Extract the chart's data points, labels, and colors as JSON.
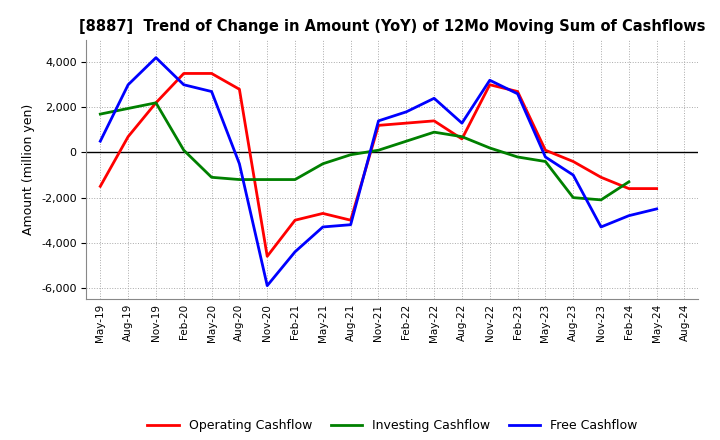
{
  "title": "[8887]  Trend of Change in Amount (YoY) of 12Mo Moving Sum of Cashflows",
  "ylabel": "Amount (million yen)",
  "x_labels": [
    "May-19",
    "Aug-19",
    "Nov-19",
    "Feb-20",
    "May-20",
    "Aug-20",
    "Nov-20",
    "Feb-21",
    "May-21",
    "Aug-21",
    "Nov-21",
    "Feb-22",
    "May-22",
    "Aug-22",
    "Nov-22",
    "Feb-23",
    "May-23",
    "Aug-23",
    "Nov-23",
    "Feb-24",
    "May-24",
    "Aug-24"
  ],
  "operating": [
    -1500,
    700,
    2200,
    3500,
    3500,
    2800,
    -4600,
    -3000,
    -2700,
    -3000,
    1200,
    1300,
    1400,
    600,
    3000,
    2700,
    100,
    -400,
    -1100,
    -1600,
    -1600,
    null
  ],
  "investing": [
    1700,
    1950,
    2200,
    100,
    -1100,
    -1200,
    -1200,
    -1200,
    -500,
    -100,
    100,
    500,
    900,
    700,
    200,
    -200,
    -400,
    -2000,
    -2100,
    -1300,
    null,
    null
  ],
  "free": [
    500,
    3000,
    4200,
    3000,
    2700,
    -500,
    -5900,
    -4400,
    -3300,
    -3200,
    1400,
    1800,
    2400,
    1300,
    3200,
    2600,
    -200,
    -1000,
    -3300,
    -2800,
    -2500,
    null
  ],
  "operating_color": "#ff0000",
  "investing_color": "#008000",
  "free_color": "#0000ff",
  "ylim": [
    -6500,
    5000
  ],
  "yticks": [
    -6000,
    -4000,
    -2000,
    0,
    2000,
    4000
  ],
  "bg_color": "#ffffff",
  "grid_color": "#aaaaaa"
}
